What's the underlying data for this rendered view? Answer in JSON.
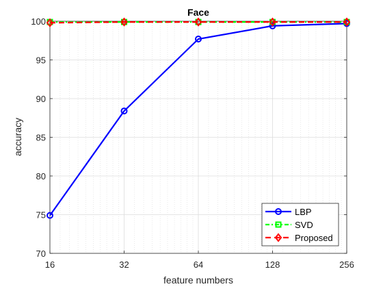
{
  "chart_data": {
    "type": "line",
    "title": "Face",
    "xlabel": "feature numbers",
    "ylabel": "accuracy",
    "x_scale": "log2",
    "x": [
      16,
      32,
      64,
      128,
      256
    ],
    "x_ticks": [
      "16",
      "32",
      "64",
      "128",
      "256"
    ],
    "xlim": [
      16,
      256
    ],
    "ylim": [
      70,
      100
    ],
    "y_ticks": [
      "70",
      "75",
      "80",
      "85",
      "90",
      "95",
      "100"
    ],
    "grid": true,
    "legend_position": "bottom-right",
    "series": [
      {
        "name": "LBP",
        "values": [
          74.9,
          88.4,
          97.7,
          99.4,
          99.7
        ],
        "color": "#0000ff",
        "line_style": "solid",
        "marker": "circle"
      },
      {
        "name": "SVD",
        "values": [
          99.9,
          99.9,
          99.9,
          99.9,
          99.9
        ],
        "color": "#00ff00",
        "line_style": "dash-dot",
        "marker": "square"
      },
      {
        "name": "Proposed",
        "values": [
          99.8,
          99.9,
          99.9,
          99.9,
          99.9
        ],
        "color": "#ff0000",
        "line_style": "dashed",
        "marker": "diamond"
      }
    ]
  }
}
